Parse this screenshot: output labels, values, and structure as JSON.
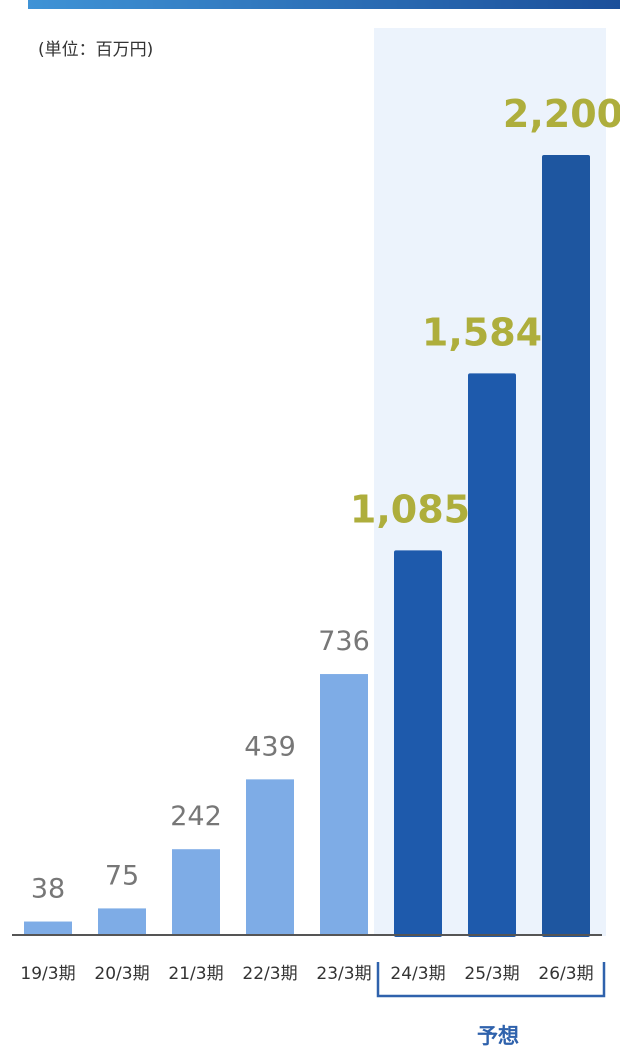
{
  "colors": {
    "top_bar_start": "#3f93d6",
    "top_bar_end": "#1b4f9a",
    "actual_bar": "#7eace6",
    "forecast_bar_1": "#1e5aac",
    "forecast_bar_2": "#1e5aac",
    "forecast_bar_3": "#1e56a0",
    "forecast_band": "#ecf3fc",
    "actual_label": "#777777",
    "forecast_label": "#aeae3c",
    "forecast_bracket": "#2f62ac",
    "axis": "#555555"
  },
  "chart_data": {
    "type": "bar",
    "title": "",
    "xlabel": "",
    "ylabel": "",
    "unit": "(単位：百万円)",
    "categories": [
      "19/3期",
      "20/3期",
      "21/3期",
      "22/3期",
      "23/3期",
      "24/3期",
      "25/3期",
      "26/3期"
    ],
    "values": [
      38,
      75,
      242,
      439,
      736,
      1085,
      1584,
      2200
    ],
    "value_labels": [
      "38",
      "75",
      "242",
      "439",
      "736",
      "1,085",
      "1,584",
      "2,200"
    ],
    "forecast_start_index": 5,
    "forecast_label": "予想",
    "ylim": [
      0,
      2200
    ],
    "grid": false,
    "legend": "none"
  }
}
